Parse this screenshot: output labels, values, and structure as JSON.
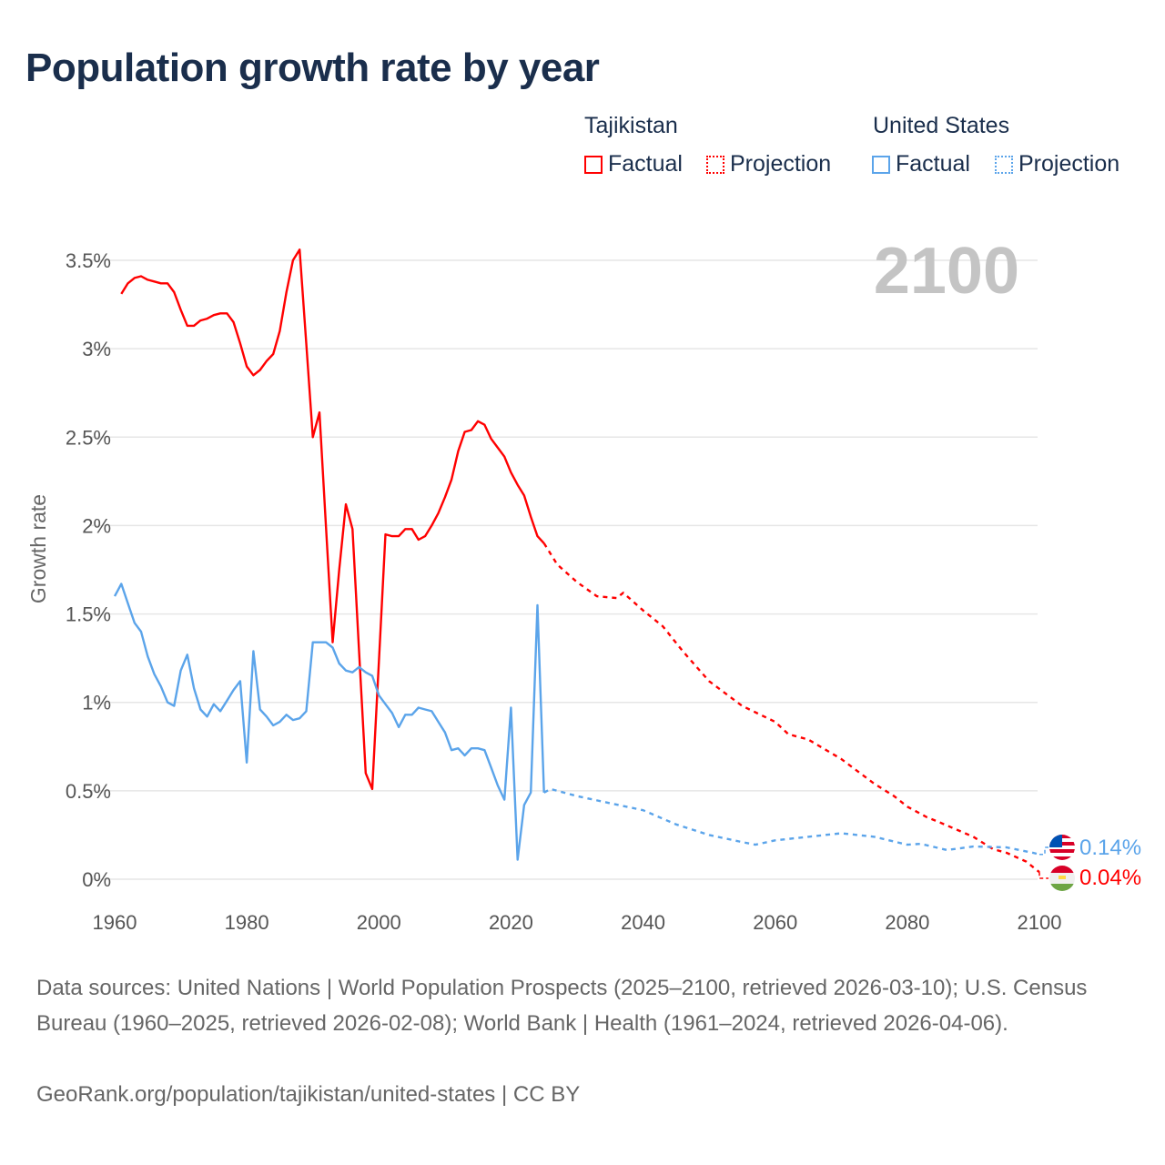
{
  "title": "Population growth rate by year",
  "legend": {
    "groups": [
      {
        "country": "Tajikistan",
        "factual": "Factual",
        "projection": "Projection",
        "color": "#ff0000"
      },
      {
        "country": "United States",
        "factual": "Factual",
        "projection": "Projection",
        "color": "#5ba4ea"
      }
    ]
  },
  "year_badge": "2100",
  "end_labels": {
    "us": "0.14%",
    "tj": "0.04%",
    "us_flag": "us-flag-icon",
    "tj_flag": "tajikistan-flag-icon"
  },
  "footer": {
    "sources": "Data sources: United Nations | World Population Prospects (2025–2100, retrieved 2026-03-10); U.S. Census Bureau (1960–2025, retrieved 2026-02-08); World Bank | Health (1961–2024, retrieved 2026-04-06).",
    "credit": "GeoRank.org/population/tajikistan/united-states | CC BY"
  },
  "chart_data": {
    "type": "line",
    "title": "Population growth rate by year",
    "xlabel": "",
    "ylabel": "Growth rate",
    "xlim": [
      1960,
      2100
    ],
    "ylim": [
      0,
      3.5
    ],
    "x_ticks": [
      "1960",
      "1980",
      "2000",
      "2020",
      "2040",
      "2060",
      "2080",
      "2100"
    ],
    "x_tick_values": [
      1960,
      1980,
      2000,
      2020,
      2040,
      2060,
      2080,
      2100
    ],
    "y_ticks": [
      "0%",
      "0.5%",
      "1%",
      "1.5%",
      "2%",
      "2.5%",
      "3%",
      "3.5%"
    ],
    "y_tick_values": [
      0,
      0.5,
      1,
      1.5,
      2,
      2.5,
      3,
      3.5
    ],
    "grid": true,
    "legend_position": "top-right",
    "series": [
      {
        "name": "Tajikistan Factual",
        "color": "#ff0000",
        "dash": false,
        "x": [
          1961,
          1962,
          1963,
          1964,
          1965,
          1966,
          1967,
          1968,
          1969,
          1970,
          1971,
          1972,
          1973,
          1974,
          1975,
          1976,
          1977,
          1978,
          1979,
          1980,
          1981,
          1982,
          1983,
          1984,
          1985,
          1986,
          1987,
          1988,
          1989,
          1990,
          1991,
          1992,
          1993,
          1994,
          1995,
          1996,
          1997,
          1998,
          1999,
          2000,
          2001,
          2002,
          2003,
          2004,
          2005,
          2006,
          2007,
          2008,
          2009,
          2010,
          2011,
          2012,
          2013,
          2014,
          2015,
          2016,
          2017,
          2018,
          2019,
          2020,
          2021,
          2022,
          2023,
          2024,
          2025
        ],
        "values": [
          3.31,
          3.37,
          3.4,
          3.41,
          3.39,
          3.38,
          3.37,
          3.37,
          3.32,
          3.22,
          3.13,
          3.13,
          3.16,
          3.17,
          3.19,
          3.2,
          3.2,
          3.15,
          3.03,
          2.9,
          2.85,
          2.88,
          2.93,
          2.97,
          3.1,
          3.32,
          3.5,
          3.56,
          3.03,
          2.5,
          2.64,
          1.99,
          1.34,
          1.75,
          2.12,
          1.98,
          1.29,
          0.6,
          0.51,
          1.23,
          1.95,
          1.94,
          1.94,
          1.98,
          1.98,
          1.92,
          1.94,
          2.0,
          2.07,
          2.16,
          2.26,
          2.42,
          2.53,
          2.54,
          2.59,
          2.57,
          2.49,
          2.44,
          2.39,
          2.3,
          2.23,
          2.17,
          2.05,
          1.94,
          1.9
        ]
      },
      {
        "name": "Tajikistan Projection",
        "color": "#ff0000",
        "dash": true,
        "x": [
          2025,
          2027,
          2030,
          2033,
          2036,
          2037,
          2040,
          2043,
          2046,
          2050,
          2055,
          2060,
          2062,
          2065,
          2070,
          2075,
          2078,
          2080,
          2083,
          2085,
          2090,
          2093,
          2095,
          2098,
          2100
        ],
        "values": [
          1.9,
          1.78,
          1.68,
          1.6,
          1.59,
          1.62,
          1.52,
          1.43,
          1.29,
          1.12,
          0.98,
          0.89,
          0.82,
          0.79,
          0.68,
          0.54,
          0.47,
          0.41,
          0.35,
          0.32,
          0.24,
          0.17,
          0.15,
          0.1,
          0.04
        ]
      },
      {
        "name": "United States Factual",
        "color": "#5ba4ea",
        "dash": false,
        "x": [
          1960,
          1961,
          1962,
          1963,
          1964,
          1965,
          1966,
          1967,
          1968,
          1969,
          1970,
          1971,
          1972,
          1973,
          1974,
          1975,
          1976,
          1977,
          1978,
          1979,
          1980,
          1981,
          1982,
          1983,
          1984,
          1985,
          1986,
          1987,
          1988,
          1989,
          1990,
          1991,
          1992,
          1993,
          1994,
          1995,
          1996,
          1997,
          1998,
          1999,
          2000,
          2001,
          2002,
          2003,
          2004,
          2005,
          2006,
          2007,
          2008,
          2009,
          2010,
          2011,
          2012,
          2013,
          2014,
          2015,
          2016,
          2017,
          2018,
          2019,
          2020,
          2021,
          2022,
          2023,
          2024,
          2025
        ],
        "values": [
          1.6,
          1.67,
          1.56,
          1.45,
          1.4,
          1.26,
          1.16,
          1.09,
          1.0,
          0.98,
          1.18,
          1.27,
          1.08,
          0.96,
          0.92,
          0.99,
          0.95,
          1.01,
          1.07,
          1.12,
          0.66,
          1.29,
          0.96,
          0.92,
          0.87,
          0.89,
          0.93,
          0.9,
          0.91,
          0.95,
          1.34,
          1.34,
          1.34,
          1.31,
          1.22,
          1.18,
          1.17,
          1.2,
          1.17,
          1.15,
          1.04,
          0.99,
          0.94,
          0.86,
          0.93,
          0.93,
          0.97,
          0.96,
          0.95,
          0.89,
          0.83,
          0.73,
          0.74,
          0.7,
          0.74,
          0.74,
          0.73,
          0.63,
          0.53,
          0.45,
          0.97,
          0.11,
          0.42,
          0.49,
          1.55,
          0.49
        ]
      },
      {
        "name": "United States Projection",
        "color": "#5ba4ea",
        "dash": true,
        "x": [
          2025,
          2026,
          2030,
          2035,
          2040,
          2045,
          2050,
          2055,
          2057,
          2060,
          2065,
          2070,
          2075,
          2080,
          2082,
          2086,
          2090,
          2095,
          2099,
          2100
        ],
        "values": [
          0.49,
          0.51,
          0.47,
          0.43,
          0.39,
          0.31,
          0.25,
          0.21,
          0.195,
          0.22,
          0.24,
          0.26,
          0.24,
          0.195,
          0.2,
          0.165,
          0.185,
          0.18,
          0.15,
          0.14
        ]
      }
    ]
  }
}
